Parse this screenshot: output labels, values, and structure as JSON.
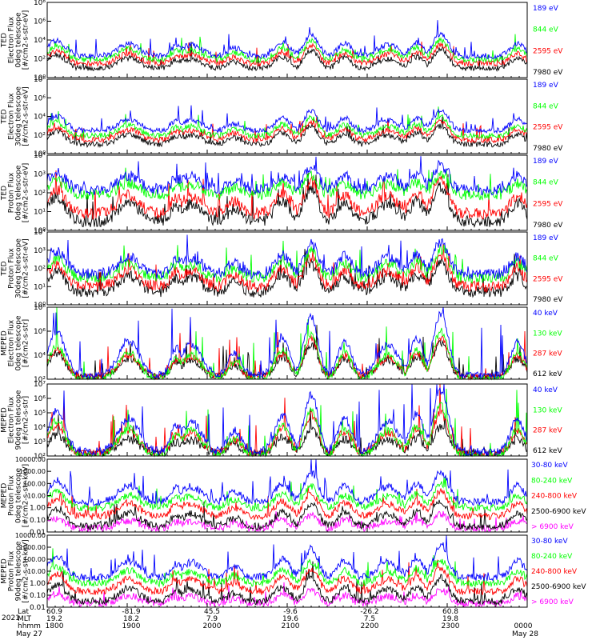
{
  "figure": {
    "date_year": "2021",
    "footer_rows": [
      {
        "label": "Lat",
        "values": [
          "60.9",
          "-81.9",
          "45.5",
          "-9.6",
          "-26.2",
          "60.8",
          ""
        ]
      },
      {
        "label": "MLT",
        "values": [
          "19.2",
          "18.2",
          "7.9",
          "19.6",
          "7.5",
          "19.8",
          ""
        ]
      },
      {
        "label": "hhmm",
        "values": [
          "1800",
          "1900",
          "2000",
          "2100",
          "2200",
          "2300",
          "0000"
        ]
      }
    ],
    "start_date": "May 27",
    "end_date": "May 28"
  },
  "colors": {
    "black": "#000000",
    "red": "#ff0000",
    "green": "#00ff00",
    "blue": "#0000ff",
    "magenta": "#ff00ff"
  },
  "chart_data": [
    {
      "type": "line",
      "panel": 1,
      "ylabel": [
        "TED",
        "Electron Flux",
        "0deg telescope",
        "[#/cm2-s-str-eV]"
      ],
      "yscale": "log",
      "ylim": [
        1.0,
        100000000.0
      ],
      "ytick_labels": [
        "10⁰",
        "10²",
        "10⁴",
        "10⁶",
        "10⁸"
      ],
      "x_hhmm": [
        "1800",
        "1900",
        "2000",
        "2100",
        "2200",
        "2300",
        "0000"
      ],
      "series": [
        {
          "name": "7980 eV",
          "color": "#000000",
          "baseline": 10.0,
          "peak": 1000.0
        },
        {
          "name": "2595 eV",
          "color": "#ff0000",
          "baseline": 30.0,
          "peak": 3000.0
        },
        {
          "name": "844 eV",
          "color": "#00ff00",
          "baseline": 80.0,
          "peak": 10000.0
        },
        {
          "name": "189 eV",
          "color": "#0000ff",
          "baseline": 200.0,
          "peak": 50000.0
        }
      ]
    },
    {
      "type": "line",
      "panel": 2,
      "ylabel": [
        "TED",
        "Electron Flux",
        "30deg telescope",
        "[#/cm2-s-str-eV]"
      ],
      "yscale": "log",
      "ylim": [
        1.0,
        100000000.0
      ],
      "ytick_labels": [
        "10⁰",
        "10²",
        "10⁴",
        "10⁶",
        "10⁸"
      ],
      "series": [
        {
          "name": "7980 eV",
          "color": "#000000",
          "baseline": 10.0,
          "peak": 1000.0
        },
        {
          "name": "2595 eV",
          "color": "#ff0000",
          "baseline": 30.0,
          "peak": 3000.0
        },
        {
          "name": "844 eV",
          "color": "#00ff00",
          "baseline": 80.0,
          "peak": 10000.0
        },
        {
          "name": "189 eV",
          "color": "#0000ff",
          "baseline": 300.0,
          "peak": 50000.0
        }
      ]
    },
    {
      "type": "line",
      "panel": 3,
      "ylabel": [
        "TED",
        "Proton Flux",
        "0deg telescope",
        "[#/cm2-s-str-eV]"
      ],
      "yscale": "log",
      "ylim": [
        1.0,
        10000.0
      ],
      "ytick_labels": [
        "10⁰",
        "10¹",
        "10²",
        "10³",
        "10⁴"
      ],
      "series": [
        {
          "name": "7980 eV",
          "color": "#000000",
          "baseline": 3.0,
          "peak": 200.0
        },
        {
          "name": "2595 eV",
          "color": "#ff0000",
          "baseline": 8.0,
          "peak": 500.0
        },
        {
          "name": "844 eV",
          "color": "#00ff00",
          "baseline": 80.0,
          "peak": 1000.0
        },
        {
          "name": "189 eV",
          "color": "#0000ff",
          "baseline": 150.0,
          "peak": 3000.0
        }
      ]
    },
    {
      "type": "line",
      "panel": 4,
      "ylabel": [
        "TED",
        "Proton Flux",
        "30deg telescope",
        "[#/cm2-s-str-eV]"
      ],
      "yscale": "log",
      "ylim": [
        1.0,
        10000.0
      ],
      "ytick_labels": [
        "10⁰",
        "10¹",
        "10²",
        "10³",
        "10⁴"
      ],
      "series": [
        {
          "name": "7980 eV",
          "color": "#000000",
          "baseline": 5.0,
          "peak": 200.0
        },
        {
          "name": "2595 eV",
          "color": "#ff0000",
          "baseline": 10.0,
          "peak": 500.0
        },
        {
          "name": "844 eV",
          "color": "#00ff00",
          "baseline": 30.0,
          "peak": 1000.0
        },
        {
          "name": "189 eV",
          "color": "#0000ff",
          "baseline": 50.0,
          "peak": 3000.0
        }
      ]
    },
    {
      "type": "line",
      "panel": 5,
      "ylabel": [
        "MEPED",
        "Electron Flux",
        "0deg telescope",
        "[#/cm2-s-str]"
      ],
      "yscale": "log",
      "ylim": [
        100.0,
        100000000.0
      ],
      "ytick_labels": [
        "10²",
        "10⁴",
        "10⁶",
        "10⁸"
      ],
      "series": [
        {
          "name": "612 keV",
          "color": "#000000",
          "baseline": 150.0,
          "peak": 100000.0
        },
        {
          "name": "287 keV",
          "color": "#ff0000",
          "baseline": 150.0,
          "peak": 300000.0
        },
        {
          "name": "130 keV",
          "color": "#00ff00",
          "baseline": 100.0,
          "peak": 1000000.0
        },
        {
          "name": "40 keV",
          "color": "#0000ff",
          "baseline": 200.0,
          "peak": 30000000.0
        }
      ]
    },
    {
      "type": "line",
      "panel": 6,
      "ylabel": [
        "MEPED",
        "Electron Flux",
        "90deg telescope",
        "[#/cm2-s-str]"
      ],
      "yscale": "log",
      "ylim": [
        100.0,
        10000000.0
      ],
      "ytick_labels": [
        "10²",
        "10³",
        "10⁴",
        "10⁵",
        "10⁶",
        "10⁷"
      ],
      "series": [
        {
          "name": "612 keV",
          "color": "#000000",
          "baseline": 150.0,
          "peak": 10000.0
        },
        {
          "name": "287 keV",
          "color": "#ff0000",
          "baseline": 150.0,
          "peak": 100000.0
        },
        {
          "name": "130 keV",
          "color": "#00ff00",
          "baseline": 100.0,
          "peak": 300000.0
        },
        {
          "name": "40 keV",
          "color": "#0000ff",
          "baseline": 200.0,
          "peak": 3000000.0
        }
      ]
    },
    {
      "type": "line",
      "panel": 7,
      "ylabel": [
        "MEPED",
        "Proton Flux",
        "0deg telescope",
        "[#/cm2-s-str-keV]"
      ],
      "yscale": "log",
      "ylim": [
        0.01,
        10000
      ],
      "ytick_labels": [
        "0.01",
        "0.10",
        "1.00",
        "10.00",
        "100.00",
        "1000.00",
        "10000.00"
      ],
      "series": [
        {
          "name": "> 6900 keV",
          "color": "#ff00ff",
          "baseline": 0.02,
          "peak": 0.3
        },
        {
          "name": "2500-6900 keV",
          "color": "#000000",
          "baseline": 0.03,
          "peak": 3.0
        },
        {
          "name": "240-800 keV",
          "color": "#ff0000",
          "baseline": 0.2,
          "peak": 20.0
        },
        {
          "name": "80-240 keV",
          "color": "#00ff00",
          "baseline": 1.0,
          "peak": 80.0
        },
        {
          "name": "30-80 keV",
          "color": "#0000ff",
          "baseline": 3.0,
          "peak": 1000.0
        }
      ]
    },
    {
      "type": "line",
      "panel": 8,
      "ylabel": [
        "MEPED",
        "Proton Flux",
        "90deg telescope",
        "[#/cm2-s-str-keV]"
      ],
      "yscale": "log",
      "ylim": [
        0.01,
        10000
      ],
      "ytick_labels": [
        "0.01",
        "0.10",
        "1.00",
        "10.00",
        "100.00",
        "1000.00",
        "10000.00"
      ],
      "series": [
        {
          "name": "> 6900 keV",
          "color": "#ff00ff",
          "baseline": 0.02,
          "peak": 0.3
        },
        {
          "name": "2500-6900 keV",
          "color": "#000000",
          "baseline": 0.03,
          "peak": 3.0
        },
        {
          "name": "240-800 keV",
          "color": "#ff0000",
          "baseline": 0.2,
          "peak": 20.0
        },
        {
          "name": "80-240 keV",
          "color": "#00ff00",
          "baseline": 1.0,
          "peak": 80.0
        },
        {
          "name": "30-80 keV",
          "color": "#0000ff",
          "baseline": 3.0,
          "peak": 1000.0
        }
      ]
    }
  ]
}
